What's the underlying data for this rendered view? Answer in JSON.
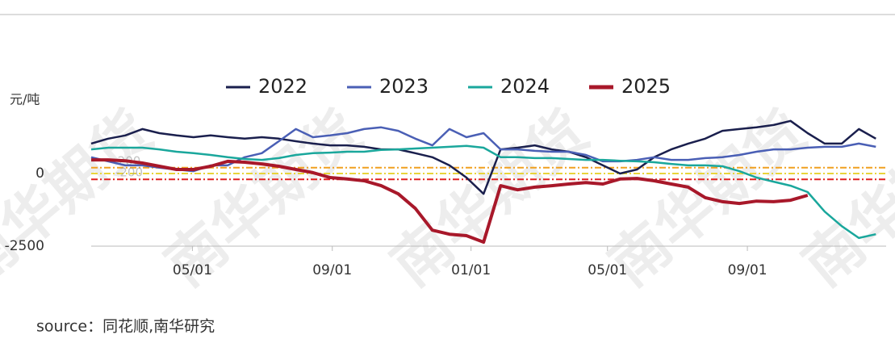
{
  "chart_data": {
    "type": "line",
    "y_unit": "元/吨",
    "source": "source：同花顺,南华研究",
    "watermark": "南华期货",
    "x": [
      0,
      15,
      30,
      45,
      60,
      75,
      90,
      105,
      120,
      135,
      150,
      165,
      180,
      195,
      210,
      225,
      240,
      255,
      270,
      285,
      300,
      315,
      330,
      345,
      360,
      375,
      390,
      405,
      420,
      435,
      450,
      465,
      480,
      495,
      510,
      525,
      540,
      555,
      570,
      585,
      600,
      615,
      630,
      645,
      660,
      675,
      690
    ],
    "xlim": [
      0,
      699
    ],
    "xticks": [
      {
        "value": 89,
        "label": "05/01"
      },
      {
        "value": 212,
        "label": "09/01"
      },
      {
        "value": 334,
        "label": "01/01"
      },
      {
        "value": 454,
        "label": "05/01"
      },
      {
        "value": 577,
        "label": "09/01"
      }
    ],
    "ylim": [
      -2500,
      2000
    ],
    "yticks": [
      -2500,
      0
    ],
    "legend": "top",
    "reference_lines": [
      {
        "value": 200,
        "label": "200",
        "color": "#f0a020"
      },
      {
        "value": 0,
        "color": "#e8d43a"
      },
      {
        "value": -200,
        "label": "-200",
        "color": "#e02020"
      }
    ],
    "series": [
      {
        "name": "2022",
        "color": "#1a1f4d",
        "values": [
          1030,
          1200,
          1310,
          1530,
          1390,
          1310,
          1250,
          1310,
          1250,
          1200,
          1250,
          1200,
          1110,
          1030,
          970,
          970,
          920,
          830,
          830,
          700,
          560,
          280,
          -140,
          -700,
          830,
          890,
          970,
          830,
          750,
          560,
          280,
          0,
          140,
          560,
          830,
          1030,
          1200,
          1470,
          1530,
          1590,
          1670,
          1810,
          1390,
          1030,
          1030,
          1530,
          1200
        ]
      },
      {
        "name": "2023",
        "color": "#4a5fb5",
        "values": [
          560,
          420,
          280,
          280,
          200,
          140,
          80,
          280,
          280,
          560,
          700,
          1110,
          1530,
          1250,
          1310,
          1390,
          1530,
          1590,
          1470,
          1200,
          970,
          1530,
          1250,
          1390,
          830,
          830,
          780,
          750,
          750,
          640,
          420,
          420,
          470,
          560,
          470,
          470,
          530,
          560,
          640,
          750,
          830,
          830,
          890,
          920,
          920,
          1030,
          920
        ]
      },
      {
        "name": "2024",
        "color": "#1aa79c",
        "values": [
          830,
          890,
          890,
          890,
          830,
          750,
          700,
          640,
          560,
          500,
          470,
          530,
          640,
          700,
          720,
          750,
          750,
          810,
          830,
          860,
          890,
          920,
          950,
          890,
          560,
          560,
          530,
          530,
          500,
          470,
          470,
          440,
          420,
          390,
          330,
          280,
          280,
          250,
          80,
          -140,
          -280,
          -420,
          -640,
          -1310,
          -1810,
          -2220,
          -2090
        ]
      },
      {
        "name": "2025",
        "color": "#a8182a",
        "values": [
          470,
          470,
          440,
          360,
          250,
          140,
          140,
          250,
          420,
          390,
          330,
          250,
          140,
          30,
          -140,
          -190,
          -250,
          -420,
          -700,
          -1200,
          -1950,
          -2090,
          -2140,
          -2360,
          -420,
          -560,
          -470,
          -420,
          -360,
          -310,
          -360,
          -190,
          -170,
          -250,
          -360,
          -470,
          -830,
          -970,
          -1030,
          -950,
          -970,
          -920,
          -750,
          null,
          null,
          null,
          null
        ]
      }
    ]
  }
}
